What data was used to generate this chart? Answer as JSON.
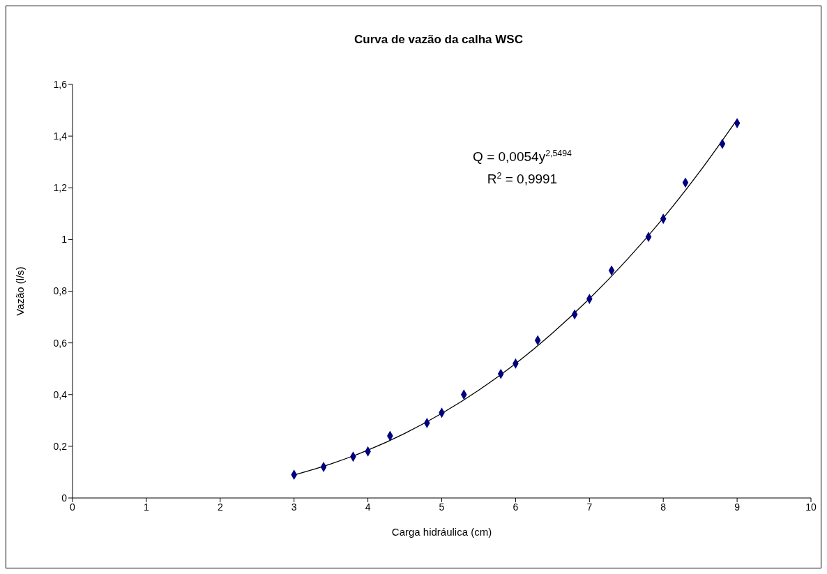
{
  "chart_data": {
    "type": "scatter",
    "title": "Curva de vazão da calha WSC",
    "xlabel": "Carga hidráulica (cm)",
    "ylabel": "Vazão (l/s)",
    "annotations": [
      "Q = 0,0054y$^{2,5494}$",
      "R$^{2}$ = 0,9991"
    ],
    "x": [
      3,
      3.4,
      3.8,
      4,
      4.3,
      4.8,
      5,
      5.3,
      5.8,
      6,
      6.3,
      6.8,
      7,
      7.3,
      7.8,
      8,
      8.3,
      8.8,
      9
    ],
    "series": [
      {
        "color": "#000080",
        "marker": "diamond",
        "values": [
          0.09,
          0.12,
          0.16,
          0.18,
          0.24,
          0.29,
          0.33,
          0.4,
          0.48,
          0.52,
          0.61,
          0.71,
          0.77,
          0.88,
          1.01,
          1.08,
          1.22,
          1.37,
          1.45
        ]
      },
      {
        "type": "line",
        "color": "#000000",
        "marker": "none",
        "line_style": "solid",
        "x": [
          3,
          3.5,
          4,
          4.5,
          5,
          5.5,
          6,
          6.5,
          7,
          7.5,
          8,
          8.5,
          9
        ],
        "values": [
          0.089,
          0.132,
          0.185,
          0.25,
          0.327,
          0.417,
          0.52,
          0.638,
          0.771,
          0.919,
          1.083,
          1.265,
          1.464
        ]
      }
    ],
    "xlim": [
      0,
      10
    ],
    "xticks": [
      0,
      1,
      2,
      3,
      4,
      5,
      6,
      7,
      8,
      9,
      10
    ],
    "ylim": [
      0,
      1.6
    ],
    "yticks": [
      0,
      {
        "value": 0.2,
        "label": "0,2"
      },
      {
        "value": 0.4,
        "label": "0,4"
      },
      {
        "value": 0.6,
        "label": "0,6"
      },
      {
        "value": 0.8,
        "label": "0,8"
      },
      1,
      {
        "value": 1.2,
        "label": "1,2"
      },
      {
        "value": 1.4,
        "label": "1,4"
      },
      {
        "value": 1.6,
        "label": "1,6"
      }
    ],
    "grid": false
  }
}
